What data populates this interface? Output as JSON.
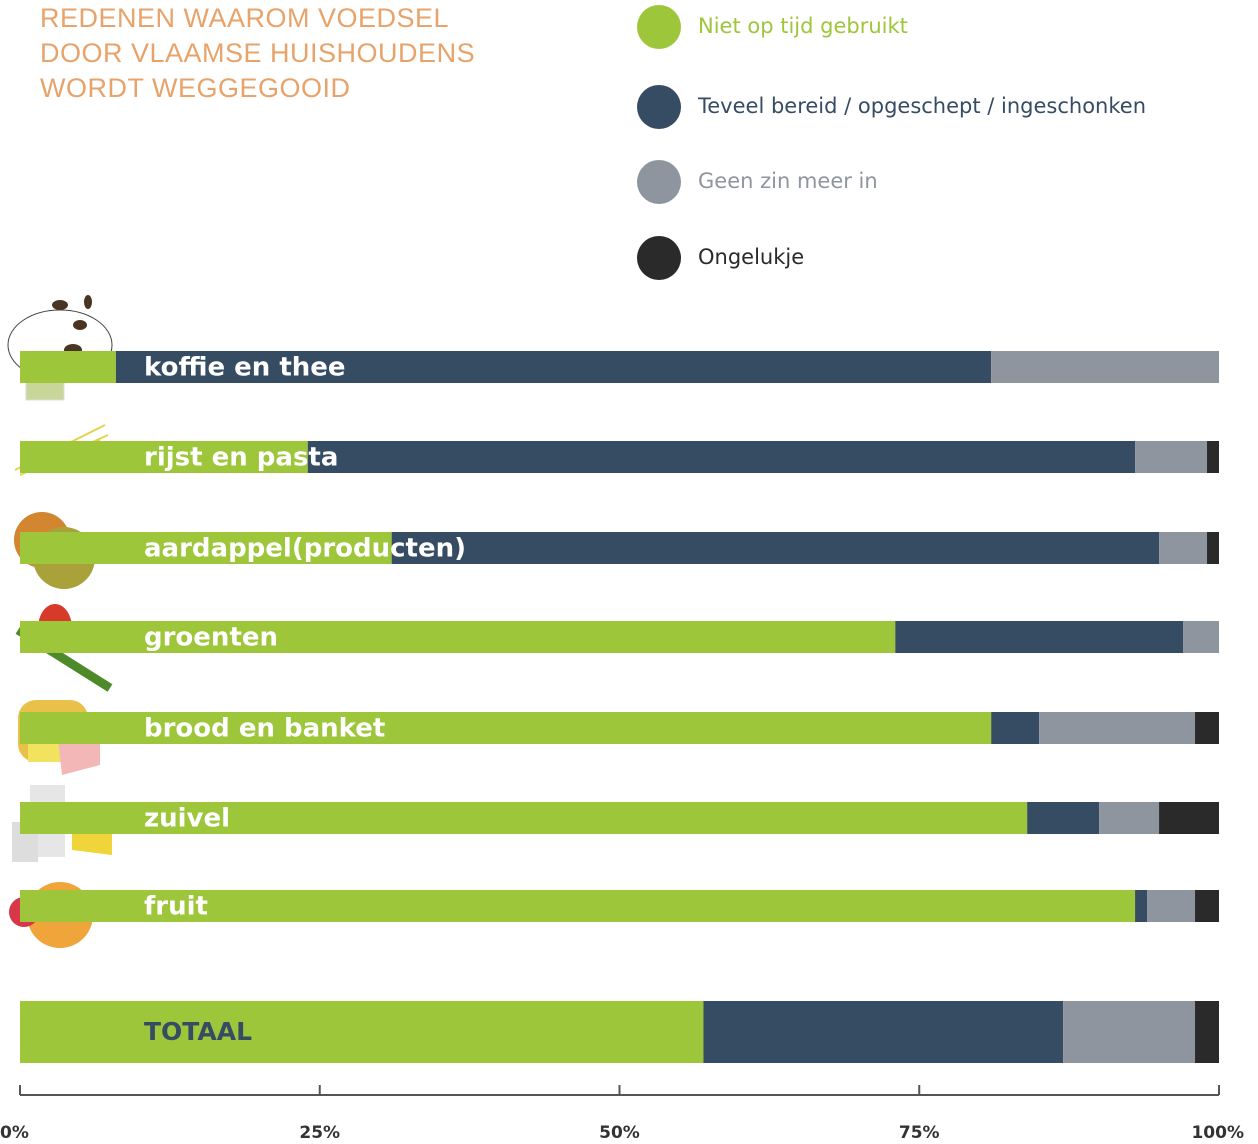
{
  "chart_data": {
    "type": "stacked-bar-horizontal",
    "title": [
      "REDENEN WAAROM VOEDSEL",
      "DOOR VLAAMSE HUISHOUDENS",
      "WORDT WEGGEGOOID"
    ],
    "categories": [
      "koffie en thee",
      "rijst en pasta",
      "aardappel(producten)",
      "groenten",
      "brood en banket",
      "zuivel",
      "fruit",
      "TOTAAL"
    ],
    "series": [
      {
        "name": "Niet op tijd gebruikt",
        "color": "#9dc63b",
        "values": [
          8,
          24,
          31,
          73,
          81,
          84,
          93,
          57
        ]
      },
      {
        "name": "Teveel bereid / opgeschept / ingeschonken",
        "color": "#364c63",
        "values": [
          73,
          69,
          64,
          24,
          4,
          6,
          1,
          30
        ]
      },
      {
        "name": "Geen zin meer in",
        "color": "#8f959f",
        "values": [
          19,
          6,
          4,
          3,
          13,
          5,
          4,
          11
        ]
      },
      {
        "name": "Ongelukje",
        "color": "#2a2a2a",
        "values": [
          0,
          1,
          1,
          0,
          2,
          5,
          2,
          2
        ]
      }
    ],
    "xlim": [
      0,
      100
    ],
    "xticks": [
      {
        "value": 0,
        "label": "0%"
      },
      {
        "value": 25,
        "label": "25%"
      },
      {
        "value": 50,
        "label": "50%"
      },
      {
        "value": 75,
        "label": "75%"
      },
      {
        "value": 100,
        "label": "100%"
      }
    ]
  }
}
